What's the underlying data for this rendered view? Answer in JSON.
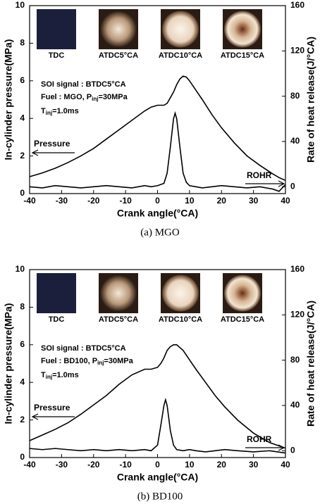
{
  "chart_data": [
    {
      "type": "line",
      "image_labels": [
        "TDC",
        "ATDC5°CA",
        "ATDC10°CA",
        "ATDC15°CA"
      ],
      "annotations": [
        "SOI signal : BTDC5°CA",
        [
          "Fuel : MGO, P",
          "inj",
          "=30MPa"
        ],
        [
          "T",
          "inj",
          "=1.0ms"
        ]
      ],
      "x_label": "Crank angle(°CA)",
      "y_label": "In-cylinder pressure(MPa)",
      "y2_label": "Rate of heat release(J/°CA)",
      "caption": "(a)  MGO",
      "xlim": [
        -40,
        40
      ],
      "xticks": [
        -40,
        -30,
        -20,
        -10,
        0,
        10,
        20,
        30,
        40
      ],
      "ylim": [
        0,
        10
      ],
      "yticks": [
        0,
        2,
        4,
        6,
        8,
        10
      ],
      "y2lim": [
        -6,
        160
      ],
      "y2ticks": [
        0,
        40,
        80,
        120,
        160
      ],
      "grid": false,
      "x": [
        -40,
        -36,
        -32,
        -28,
        -24,
        -20,
        -16,
        -12,
        -8,
        -4,
        -2,
        0,
        2,
        3,
        4,
        5,
        5.5,
        6,
        7,
        8,
        9,
        10,
        12,
        14,
        17,
        20,
        24,
        28,
        32,
        36,
        38,
        40
      ],
      "series": [
        {
          "name": "Pressure",
          "color": "#000000",
          "values": [
            0.9,
            1.1,
            1.35,
            1.65,
            2.0,
            2.4,
            2.9,
            3.4,
            3.9,
            4.4,
            4.6,
            4.7,
            4.7,
            4.8,
            5.1,
            5.4,
            5.6,
            5.8,
            6.1,
            6.25,
            6.2,
            6.0,
            5.5,
            5.0,
            4.2,
            3.5,
            2.7,
            2.0,
            1.5,
            1.05,
            0.85,
            0.7
          ]
        },
        {
          "name": "ROHR",
          "color": "#000000",
          "axis": "y2",
          "values": [
            0,
            -1,
            1,
            0,
            -1,
            0,
            1,
            0,
            -1,
            1,
            0,
            1,
            3,
            12,
            35,
            60,
            65,
            60,
            35,
            12,
            4,
            1,
            0,
            -1,
            0,
            1,
            0,
            -1,
            0,
            -2,
            -4,
            2
          ]
        }
      ]
    },
    {
      "type": "line",
      "image_labels": [
        "TDC",
        "ATDC5°CA",
        "ATDC10°CA",
        "ATDC15°CA"
      ],
      "annotations": [
        "SOI signal : BTDC5°CA",
        [
          "Fuel : BD100, P",
          "inj",
          "=30MPa"
        ],
        [
          "T",
          "inj",
          "=1.0ms"
        ]
      ],
      "x_label": "Crank angle(°CA)",
      "y_label": "In-cylinder pressure(MPa)",
      "y2_label": "Rate of heat release(J/°CA)",
      "caption": "(b)  BD100",
      "xlim": [
        -40,
        40
      ],
      "xticks": [
        -40,
        -30,
        -20,
        -10,
        0,
        10,
        20,
        30,
        40
      ],
      "ylim": [
        0,
        10
      ],
      "yticks": [
        0,
        2,
        4,
        6,
        8,
        10
      ],
      "y2lim": [
        -6,
        160
      ],
      "y2ticks": [
        0,
        40,
        80,
        120,
        160
      ],
      "grid": false,
      "x": [
        -40,
        -36,
        -32,
        -28,
        -24,
        -20,
        -16,
        -12,
        -8,
        -4,
        -2,
        0,
        1,
        2,
        2.5,
        3,
        4,
        5,
        6,
        8,
        10,
        12,
        15,
        18,
        21,
        25,
        30,
        35,
        40
      ],
      "series": [
        {
          "name": "Pressure",
          "color": "#000000",
          "values": [
            0.9,
            1.2,
            1.5,
            1.85,
            2.3,
            2.8,
            3.3,
            3.9,
            4.4,
            4.7,
            4.7,
            4.8,
            5.0,
            5.3,
            5.5,
            5.7,
            5.9,
            6.0,
            6.0,
            5.7,
            5.2,
            4.7,
            4.0,
            3.3,
            2.7,
            2.0,
            1.3,
            0.8,
            0.5
          ]
        },
        {
          "name": "ROHR",
          "color": "#000000",
          "axis": "y2",
          "values": [
            2,
            1,
            2,
            1,
            0,
            1,
            0,
            1,
            0,
            1,
            0,
            5,
            22,
            40,
            45,
            40,
            18,
            5,
            1,
            0,
            1,
            0,
            -1,
            0,
            1,
            0,
            -1,
            0,
            -2
          ]
        }
      ]
    }
  ]
}
